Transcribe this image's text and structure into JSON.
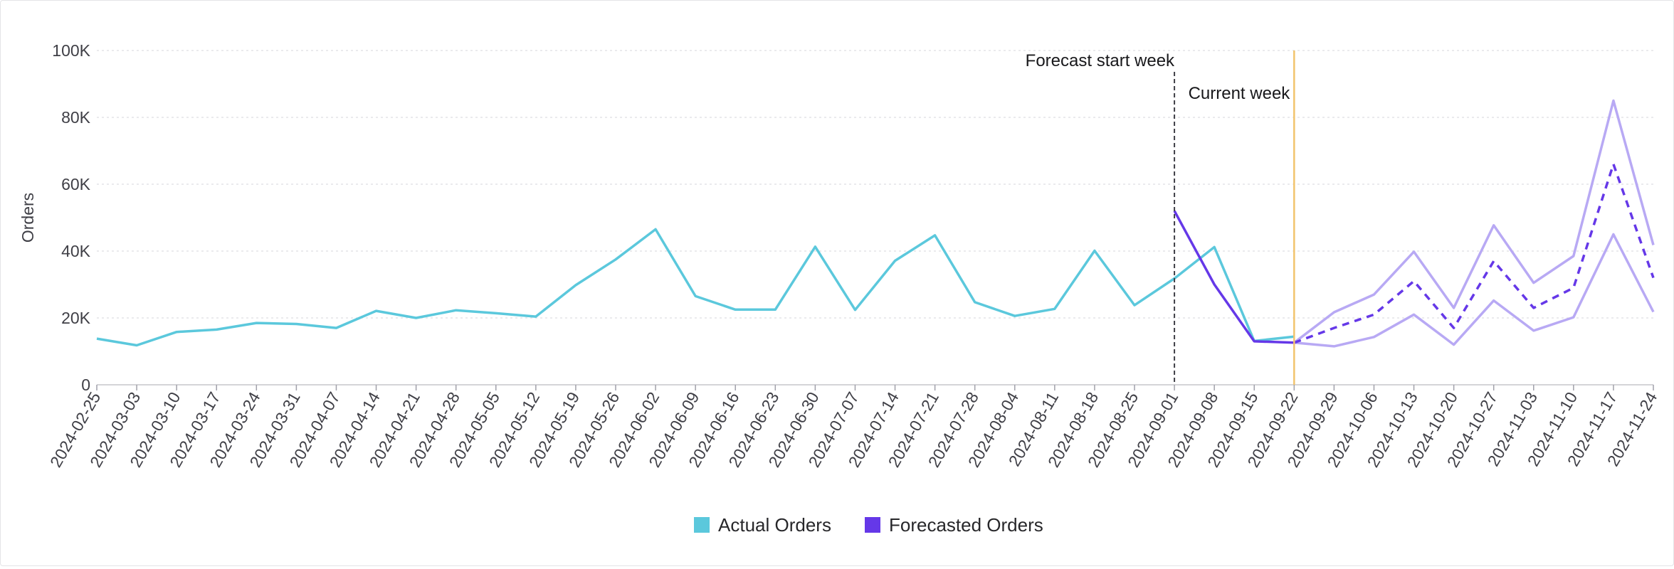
{
  "chart_data": {
    "type": "line",
    "ylabel": "Orders",
    "ylim": [
      0,
      100000
    ],
    "y_ticks": [
      {
        "value": 0,
        "label": "0"
      },
      {
        "value": 20000,
        "label": "20K"
      },
      {
        "value": 40000,
        "label": "40K"
      },
      {
        "value": 60000,
        "label": "60K"
      },
      {
        "value": 80000,
        "label": "80K"
      },
      {
        "value": 100000,
        "label": "100K"
      }
    ],
    "grid": true,
    "legend_position": "bottom-center",
    "categories": [
      "2024-02-25",
      "2024-03-03",
      "2024-03-10",
      "2024-03-17",
      "2024-03-24",
      "2024-03-31",
      "2024-04-07",
      "2024-04-14",
      "2024-04-21",
      "2024-04-28",
      "2024-05-05",
      "2024-05-12",
      "2024-05-19",
      "2024-05-26",
      "2024-06-02",
      "2024-06-09",
      "2024-06-16",
      "2024-06-23",
      "2024-06-30",
      "2024-07-07",
      "2024-07-14",
      "2024-07-21",
      "2024-07-28",
      "2024-08-04",
      "2024-08-11",
      "2024-08-18",
      "2024-08-25",
      "2024-09-01",
      "2024-09-08",
      "2024-09-15",
      "2024-09-22",
      "2024-09-29",
      "2024-10-06",
      "2024-10-13",
      "2024-10-20",
      "2024-10-27",
      "2024-11-03",
      "2024-11-10",
      "2024-11-17",
      "2024-11-24"
    ],
    "series": [
      {
        "name": "Actual Orders",
        "color": "#5bc8dc",
        "values": [
          13800,
          11800,
          15800,
          16500,
          18500,
          18200,
          17000,
          22100,
          20000,
          22300,
          21400,
          20400,
          29800,
          37500,
          46500,
          26500,
          22500,
          22500,
          41300,
          22400,
          37100,
          44700,
          24700,
          20600,
          22700,
          40100,
          23800,
          31800,
          41200,
          13100,
          14400,
          null,
          null,
          null,
          null,
          null,
          null,
          null,
          null,
          null
        ]
      },
      {
        "name": "Forecasted Orders",
        "color": "#6538e8",
        "values": [
          null,
          null,
          null,
          null,
          null,
          null,
          null,
          null,
          null,
          null,
          null,
          null,
          null,
          null,
          null,
          null,
          null,
          null,
          null,
          null,
          null,
          null,
          null,
          null,
          null,
          null,
          null,
          52000,
          30000,
          13000,
          12600,
          17000,
          21000,
          31000,
          17000,
          37000,
          23000,
          29000,
          66000,
          32000
        ]
      }
    ],
    "forecast_interval": {
      "color": "#b8a9f4",
      "upper": [
        null,
        null,
        null,
        null,
        null,
        null,
        null,
        null,
        null,
        null,
        null,
        null,
        null,
        null,
        null,
        null,
        null,
        null,
        null,
        null,
        null,
        null,
        null,
        null,
        null,
        null,
        null,
        null,
        null,
        null,
        12600,
        21700,
        27000,
        39800,
        23000,
        47700,
        30500,
        38500,
        85000,
        41800
      ],
      "lower": [
        null,
        null,
        null,
        null,
        null,
        null,
        null,
        null,
        null,
        null,
        null,
        null,
        null,
        null,
        null,
        null,
        null,
        null,
        null,
        null,
        null,
        null,
        null,
        null,
        null,
        null,
        null,
        null,
        null,
        null,
        12600,
        11500,
        14300,
        21000,
        12000,
        25200,
        16200,
        20200,
        45000,
        21800
      ]
    },
    "annotations": [
      {
        "label": "Forecast start week",
        "x": "2024-09-01",
        "color": "#3f3f46",
        "style": "dashed"
      },
      {
        "label": "Current week",
        "x": "2024-09-22",
        "color": "#f2c46d",
        "style": "solid"
      }
    ]
  }
}
